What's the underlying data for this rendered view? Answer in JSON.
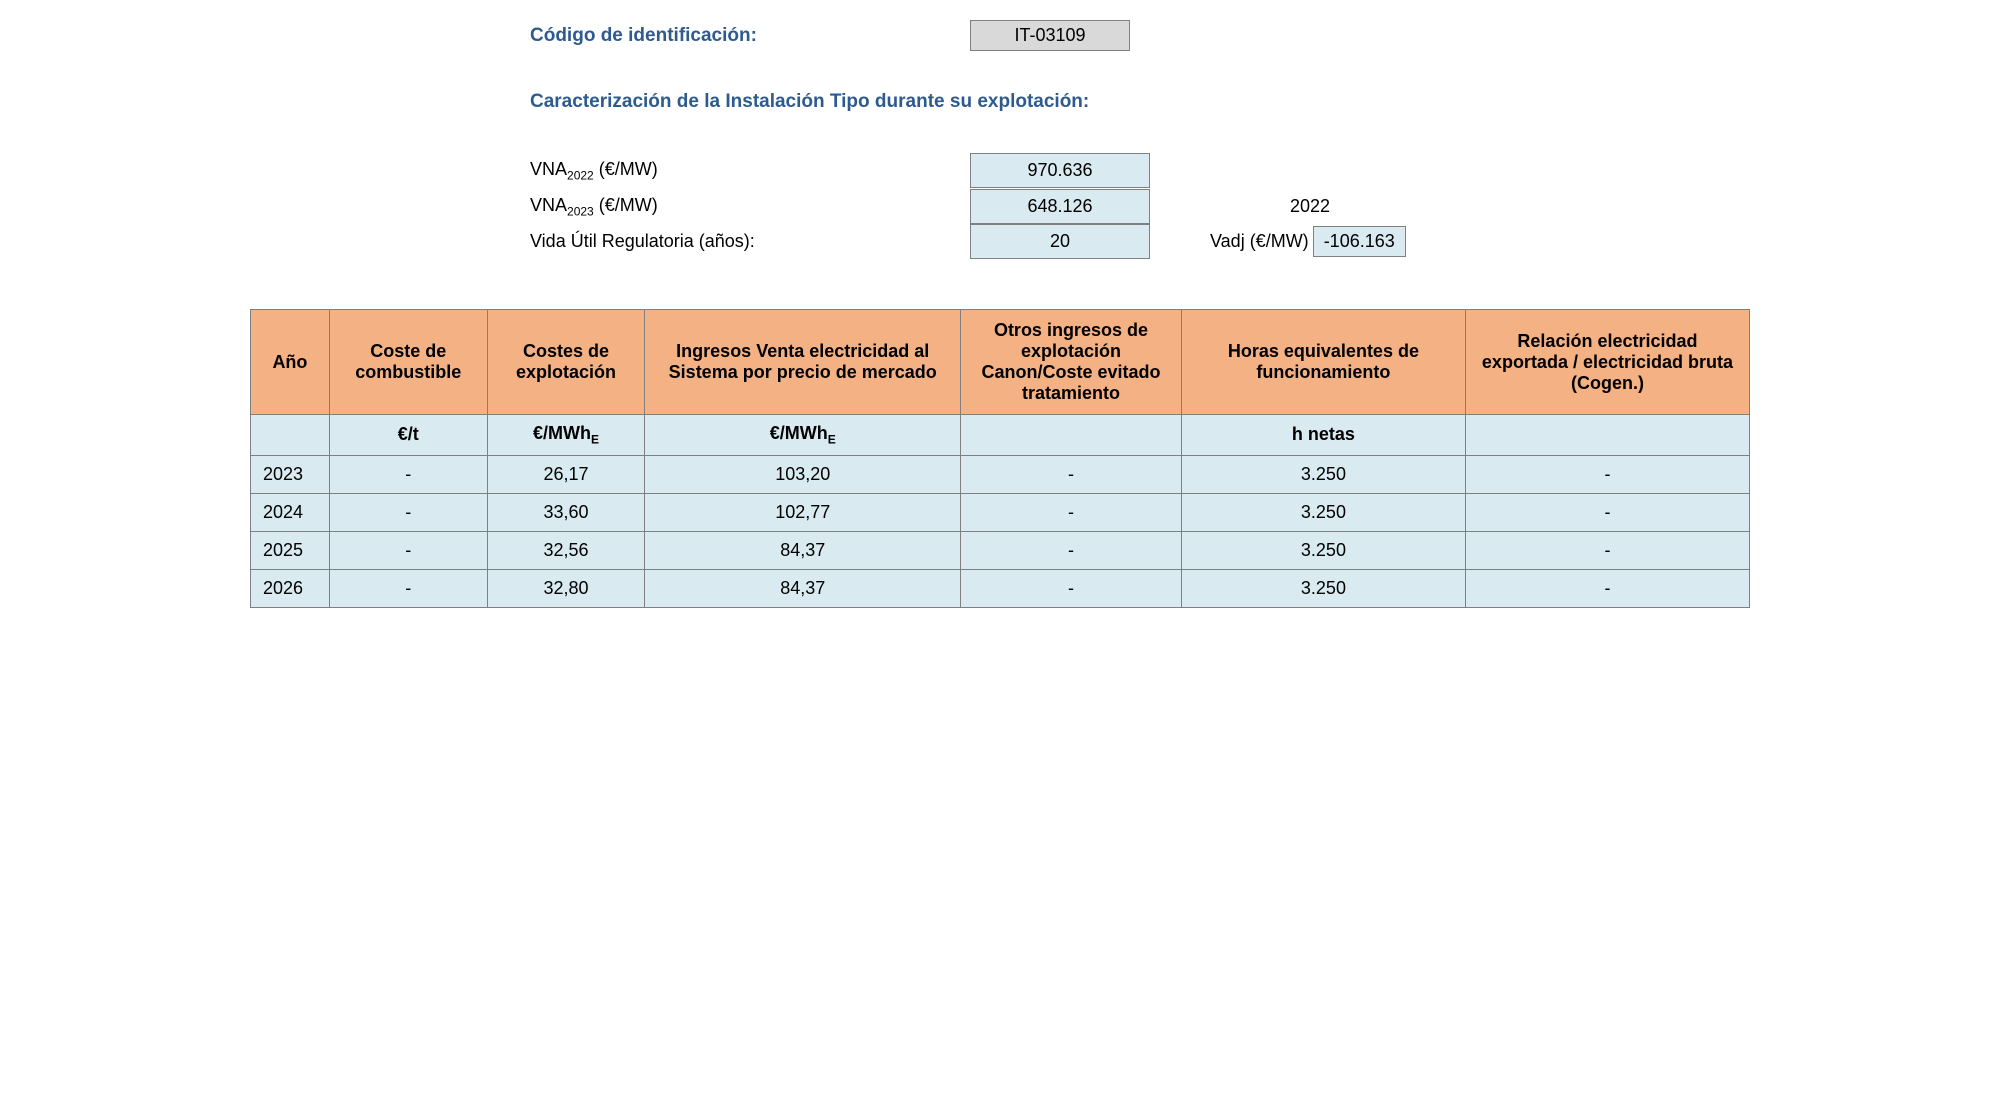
{
  "header": {
    "code_label": "Código de identificación:",
    "code_value": "IT-03109",
    "section_title": "Caracterización de la Instalación Tipo durante su explotación:"
  },
  "info": {
    "vna2022_label_prefix": "VNA",
    "vna2022_label_sub": "2022",
    "vna2022_label_suffix": " (€/MW)",
    "vna2022_value": "970.636",
    "vna2023_label_prefix": "VNA",
    "vna2023_label_sub": "2023",
    "vna2023_label_suffix": " (€/MW)",
    "vna2023_value": "648.126",
    "year_side": "2022",
    "vida_label": "Vida Útil Regulatoria (años):",
    "vida_value": "20",
    "vadj_label": "Vadj (€/MW)",
    "vadj_value": "-106.163"
  },
  "table": {
    "headers": {
      "year": "Año",
      "combustible": "Coste de combustible",
      "explotacion": "Costes de explotación",
      "ingresos_venta": "Ingresos Venta electricidad al Sistema por precio de mercado",
      "otros_ingresos": "Otros ingresos de explotación Canon/Coste evitado tratamiento",
      "horas": "Horas equivalentes de funcionamiento",
      "relacion": "Relación electricidad exportada / electricidad bruta",
      "relacion_sub": "(Cogen.)"
    },
    "units": {
      "year": "",
      "combustible": "€/t",
      "explotacion_prefix": "€/MWh",
      "explotacion_sub": "E",
      "ingresos_prefix": "€/MWh",
      "ingresos_sub": "E",
      "otros": "",
      "horas": "h netas",
      "relacion": ""
    },
    "rows": [
      {
        "year": "2023",
        "combustible": "-",
        "explotacion": "26,17",
        "ingresos": "103,20",
        "otros": "-",
        "horas": "3.250",
        "relacion": "-"
      },
      {
        "year": "2024",
        "combustible": "-",
        "explotacion": "33,60",
        "ingresos": "102,77",
        "otros": "-",
        "horas": "3.250",
        "relacion": "-"
      },
      {
        "year": "2025",
        "combustible": "-",
        "explotacion": "32,56",
        "ingresos": "84,37",
        "otros": "-",
        "horas": "3.250",
        "relacion": "-"
      },
      {
        "year": "2026",
        "combustible": "-",
        "explotacion": "32,80",
        "ingresos": "84,37",
        "otros": "-",
        "horas": "3.250",
        "relacion": "-"
      }
    ]
  },
  "colors": {
    "header_bg": "#f4b183",
    "cell_bg": "#d9eaf1",
    "border": "#808080",
    "title_color": "#2e5b8f",
    "code_bg": "#d9d9d9"
  }
}
